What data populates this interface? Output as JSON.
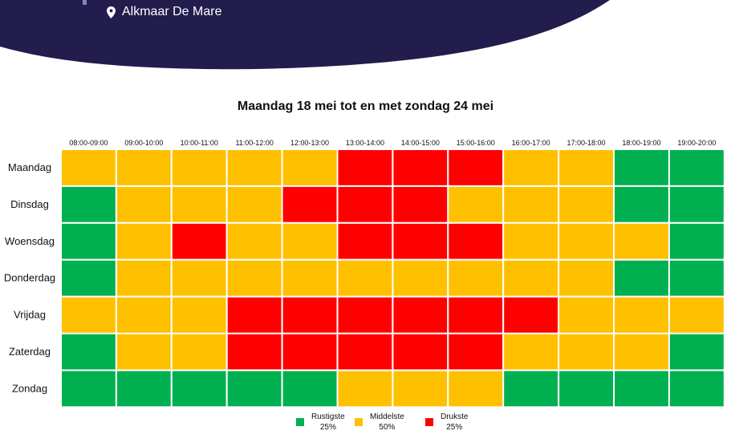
{
  "header": {
    "location": "Alkmaar De Mare",
    "location_icon": "map-pin-icon"
  },
  "colors": {
    "banner": "#221d4c",
    "rustig": "#00b050",
    "middel": "#ffc000",
    "druk": "#ff0000"
  },
  "chart_data": {
    "type": "heatmap",
    "title": "Maandag 18 mei tot en met zondag 24 mei",
    "x_labels": [
      "08:00-09:00",
      "09:00-10:00",
      "10:00-11:00",
      "11:00-12:00",
      "12:00-13:00",
      "13:00-14:00",
      "14:00-15:00",
      "15:00-16:00",
      "16:00-17:00",
      "17:00-18:00",
      "18:00-19:00",
      "19:00-20:00"
    ],
    "y_labels": [
      "Maandag",
      "Dinsdag",
      "Woensdag",
      "Donderdag",
      "Vrijdag",
      "Zaterdag",
      "Zondag"
    ],
    "levels": [
      "Rustigste 25%",
      "Middelste 50%",
      "Drukste 25%"
    ],
    "values": [
      [
        1,
        1,
        1,
        1,
        1,
        2,
        2,
        2,
        1,
        1,
        0,
        0
      ],
      [
        0,
        1,
        1,
        1,
        2,
        2,
        2,
        1,
        1,
        1,
        0,
        0
      ],
      [
        0,
        1,
        2,
        1,
        1,
        2,
        2,
        2,
        1,
        1,
        1,
        0
      ],
      [
        0,
        1,
        1,
        1,
        1,
        1,
        1,
        1,
        1,
        1,
        0,
        0
      ],
      [
        1,
        1,
        1,
        2,
        2,
        2,
        2,
        2,
        2,
        1,
        1,
        1
      ],
      [
        0,
        1,
        1,
        2,
        2,
        2,
        2,
        2,
        1,
        1,
        1,
        0
      ],
      [
        0,
        0,
        0,
        0,
        0,
        1,
        1,
        1,
        0,
        0,
        0,
        0
      ]
    ],
    "legend": [
      {
        "name": "Rustigste",
        "pct": "25%",
        "color": "#00b050"
      },
      {
        "name": "Middelste",
        "pct": "50%",
        "color": "#ffc000"
      },
      {
        "name": "Drukste",
        "pct": "25%",
        "color": "#ff0000"
      }
    ],
    "legend_position": "bottom-center"
  }
}
